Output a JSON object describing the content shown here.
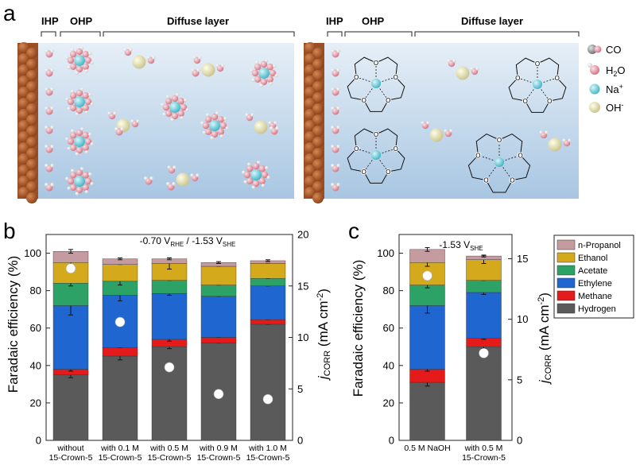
{
  "panel_a": {
    "label": "a",
    "left_headers": [
      "IHP",
      "OHP",
      "Diffuse layer"
    ],
    "right_headers": [
      "IHP",
      "OHP",
      "Diffuse layer"
    ],
    "legend": [
      {
        "name": "co",
        "text": "CO",
        "color": "#8a8a8a"
      },
      {
        "name": "h2o",
        "text": "H",
        "sub": "2",
        "tail": "O",
        "color": "#e79aa6"
      },
      {
        "name": "na",
        "text": "Na",
        "sup": "+",
        "color": "#5fc9d6"
      },
      {
        "name": "oh",
        "text": "OH",
        "sup": "-",
        "color": "#e6e3b8"
      }
    ]
  },
  "chart_data": [
    {
      "panel": "b",
      "type": "bar",
      "stacked": true,
      "title": "-0.70 V_RHE / -1.53 V_SHE",
      "ylabel": "Faradaic efficiency (%)",
      "y2label": "j_CORR (mA cm^-2)",
      "ylim": [
        0,
        110
      ],
      "y2lim": [
        0,
        20
      ],
      "yticks": [
        0,
        20,
        40,
        60,
        80,
        100
      ],
      "y2ticks": [
        0,
        5,
        10,
        15,
        20
      ],
      "categories": [
        [
          "without",
          "15-Crown-5"
        ],
        [
          "with 0.1 M",
          "15-Crown-5"
        ],
        [
          "with 0.5 M",
          "15-Crown-5"
        ],
        [
          "with 0.9 M",
          "15-Crown-5"
        ],
        [
          "with 1.0 M",
          "15-Crown-5"
        ]
      ],
      "series": [
        {
          "name": "Hydrogen",
          "color": "#5a5a5a",
          "values": [
            35,
            45,
            50,
            52,
            62
          ],
          "errors": [
            1.5,
            2,
            1,
            0,
            0
          ]
        },
        {
          "name": "Methane",
          "color": "#e51a1a",
          "values": [
            3,
            4.5,
            4,
            3,
            2.5
          ],
          "errors": [
            1,
            0,
            1,
            0,
            0
          ]
        },
        {
          "name": "Ethylene",
          "color": "#1f66d1",
          "values": [
            34,
            28,
            24.5,
            22,
            18
          ],
          "errors": [
            5,
            3,
            1,
            0,
            0
          ]
        },
        {
          "name": "Acetate",
          "color": "#2ca266",
          "values": [
            12,
            7.5,
            7,
            6,
            4
          ],
          "errors": [
            1.5,
            2,
            0,
            0,
            0
          ]
        },
        {
          "name": "Ethanol",
          "color": "#d4aa1c",
          "values": [
            11,
            9,
            9,
            10,
            8
          ],
          "errors": [
            2,
            0,
            3,
            0,
            0
          ]
        },
        {
          "name": "n-Propanol",
          "color": "#c49b9f",
          "values": [
            6,
            3,
            2.5,
            2,
            1.5
          ],
          "errors": [
            1,
            0.5,
            0.5,
            0.5,
            0.5
          ]
        }
      ],
      "jcorr": [
        16.7,
        11.5,
        7.1,
        4.5,
        4.0
      ]
    },
    {
      "panel": "c",
      "type": "bar",
      "stacked": true,
      "title": "-1.53 V_SHE",
      "ylabel": "Faradaic efficiency (%)",
      "y2label": "j_CORR (mA cm^-2)",
      "ylim": [
        0,
        110
      ],
      "y2lim": [
        0,
        17
      ],
      "yticks": [
        0,
        20,
        40,
        60,
        80,
        100
      ],
      "y2ticks": [
        0,
        5,
        10,
        15
      ],
      "categories": [
        [
          "0.5 M NaOH"
        ],
        [
          "with 0.5 M",
          "15-Crown-5"
        ]
      ],
      "series": [
        {
          "name": "Hydrogen",
          "color": "#5a5a5a",
          "values": [
            31,
            50
          ],
          "errors": [
            2,
            1
          ]
        },
        {
          "name": "Methane",
          "color": "#e51a1a",
          "values": [
            7,
            4.5
          ],
          "errors": [
            1,
            0.5
          ]
        },
        {
          "name": "Ethylene",
          "color": "#1f66d1",
          "values": [
            34,
            24.5
          ],
          "errors": [
            4,
            1
          ]
        },
        {
          "name": "Acetate",
          "color": "#2ca266",
          "values": [
            11,
            6.5
          ],
          "errors": [
            1.5,
            0
          ]
        },
        {
          "name": "Ethanol",
          "color": "#d4aa1c",
          "values": [
            12,
            11
          ],
          "errors": [
            2,
            2
          ]
        },
        {
          "name": "n-Propanol",
          "color": "#c49b9f",
          "values": [
            7,
            2
          ],
          "errors": [
            1,
            0.5
          ]
        }
      ],
      "jcorr": [
        13.6,
        7.2
      ]
    }
  ],
  "legend_order": [
    "n-Propanol",
    "Ethanol",
    "Acetate",
    "Ethylene",
    "Methane",
    "Hydrogen"
  ],
  "colors": {
    "electrode": "#a8582a",
    "solution_top": "#dde9f3",
    "solution_bottom": "#a9c8e4",
    "crown": "#111111",
    "axis": "#222222"
  },
  "panel_labels": {
    "b": "b",
    "c": "c"
  }
}
